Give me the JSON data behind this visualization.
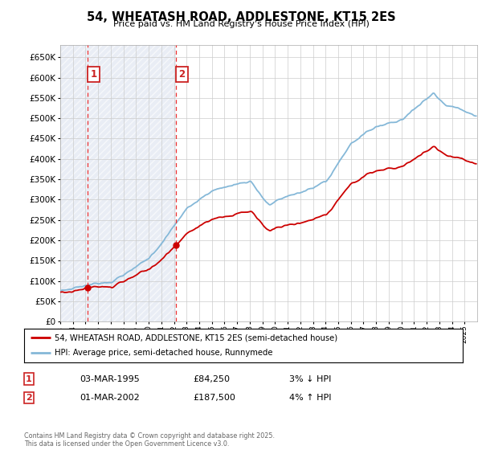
{
  "title": "54, WHEATASH ROAD, ADDLESTONE, KT15 2ES",
  "subtitle": "Price paid vs. HM Land Registry's House Price Index (HPI)",
  "legend_line1": "54, WHEATASH ROAD, ADDLESTONE, KT15 2ES (semi-detached house)",
  "legend_line2": "HPI: Average price, semi-detached house, Runnymede",
  "footer": "Contains HM Land Registry data © Crown copyright and database right 2025.\nThis data is licensed under the Open Government Licence v3.0.",
  "purchase1_date": "03-MAR-1995",
  "purchase1_price": 84250,
  "purchase1_year": 1995.17,
  "purchase1_note": "3% ↓ HPI",
  "purchase2_date": "01-MAR-2002",
  "purchase2_price": 187500,
  "purchase2_year": 2002.17,
  "purchase2_note": "4% ↑ HPI",
  "ylim_min": 0,
  "ylim_max": 680000,
  "yticks": [
    0,
    50000,
    100000,
    150000,
    200000,
    250000,
    300000,
    350000,
    400000,
    450000,
    500000,
    550000,
    600000,
    650000
  ],
  "xlim_min": 1993,
  "xlim_max": 2026,
  "hatch_color": "#c8d4e8",
  "hatch_end": 2002.17,
  "price_color": "#cc0000",
  "hpi_color": "#85b8d8",
  "vline_color": "#ee3333",
  "box_color": "#cc2222",
  "grid_color": "#cccccc",
  "fig_bg": "#ffffff"
}
